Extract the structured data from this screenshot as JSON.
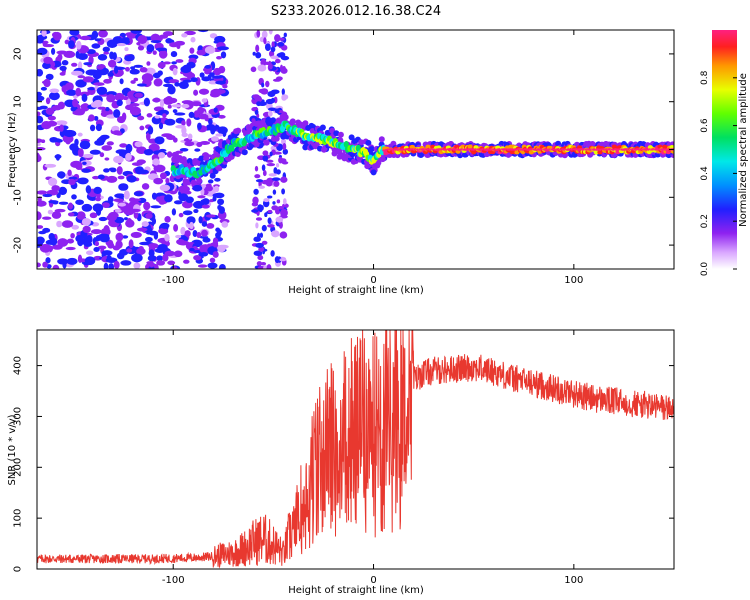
{
  "title": "S233.2026.012.16.38.C24",
  "chart_data": [
    {
      "type": "heatmap",
      "title": "S233.2026.012.16.38.C24",
      "xlabel": "Height of straight line (km)",
      "ylabel": "Frequency (Hz)",
      "xlim": [
        -168,
        150
      ],
      "ylim": [
        -25,
        25
      ],
      "xticks": [
        -100,
        0,
        100
      ],
      "yticks": [
        -20,
        -10,
        0,
        10,
        20
      ],
      "ridge_x": [
        -100,
        -96,
        -92,
        -88,
        -84,
        -80,
        -76,
        -72,
        -68,
        -64,
        -60,
        -56,
        -52,
        -48,
        -44,
        -40,
        -36,
        -32,
        -28,
        -24,
        -20,
        -16,
        -12,
        -8,
        -4,
        -2,
        0,
        2,
        4,
        8,
        20,
        40,
        60,
        80,
        100,
        120,
        150
      ],
      "ridge_y": [
        -4.5,
        -4.3,
        -4.6,
        -4.8,
        -4.0,
        -3.0,
        -1.5,
        0.5,
        1.5,
        2.0,
        2.8,
        3.3,
        3.8,
        4.3,
        4.8,
        4.0,
        3.2,
        2.7,
        2.4,
        2.0,
        1.5,
        0.8,
        0.3,
        -0.2,
        -0.6,
        -1.6,
        -2.2,
        -1.5,
        -0.4,
        0.0,
        0.0,
        0.0,
        0.0,
        0.0,
        0.0,
        0.0,
        0.0
      ],
      "colorbar": {
        "label": "Normalized spectral amplitude",
        "range": [
          0,
          1
        ],
        "ticks": [
          "0.0",
          "0.2",
          "0.4",
          "0.6",
          "0.8"
        ]
      }
    },
    {
      "type": "line",
      "xlabel": "Height of straight line (km)",
      "ylabel": "SNR (10 * v/v)",
      "xlim": [
        -168,
        150
      ],
      "ylim": [
        0,
        470
      ],
      "xticks": [
        -100,
        0,
        100
      ],
      "yticks": [
        0,
        100,
        200,
        300,
        400
      ],
      "line_color": "#e8382f",
      "series": [
        {
          "name": "SNR",
          "x": [
            -168,
            -150,
            -130,
            -110,
            -90,
            -80,
            -70,
            -65,
            -60,
            -55,
            -50,
            -45,
            -40,
            -35,
            -30,
            -25,
            -20,
            -15,
            -10,
            -5,
            0,
            5,
            10,
            15,
            20,
            25,
            30,
            40,
            50,
            60,
            70,
            80,
            90,
            100,
            110,
            120,
            130,
            140,
            150
          ],
          "y": [
            20,
            20,
            20,
            20,
            22,
            25,
            32,
            40,
            52,
            60,
            48,
            30,
            85,
            150,
            210,
            250,
            270,
            285,
            300,
            310,
            300,
            320,
            345,
            360,
            372,
            385,
            390,
            393,
            397,
            388,
            375,
            365,
            355,
            345,
            335,
            330,
            325,
            320,
            315
          ]
        }
      ]
    }
  ]
}
